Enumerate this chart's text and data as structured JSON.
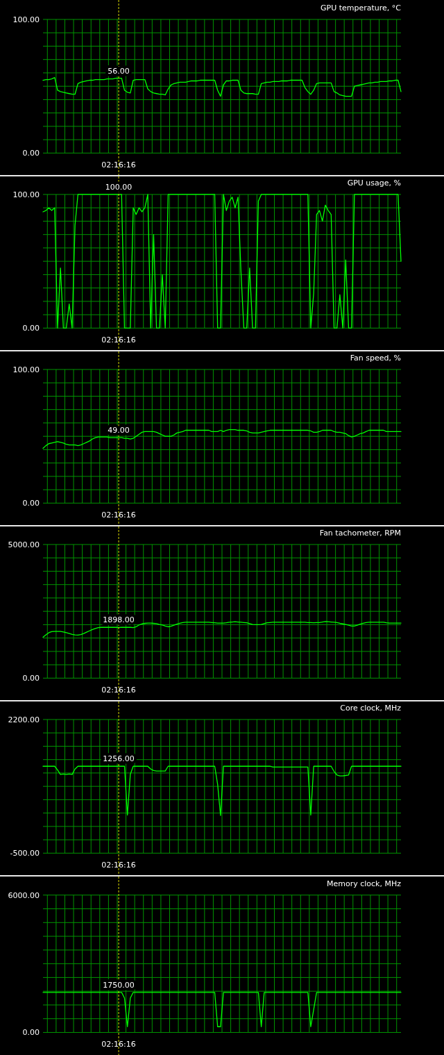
{
  "chart_data": [
    {
      "type": "line",
      "title": "GPU temperature, °C",
      "color": "#00ff00",
      "categories": [
        null,
        null,
        null,
        null,
        null,
        null,
        null,
        null,
        null,
        null,
        null,
        null,
        null,
        null,
        null,
        null,
        null,
        null,
        null,
        null,
        null,
        null,
        null,
        null,
        null,
        null,
        "02:16:16",
        null,
        null,
        null,
        null,
        null,
        null,
        null,
        null,
        null,
        null,
        null,
        null,
        null,
        null,
        null,
        null,
        null,
        null,
        null,
        null,
        null,
        null,
        null,
        null,
        null,
        null,
        null,
        null,
        null,
        null,
        null,
        null,
        null,
        null,
        null,
        null,
        null,
        null,
        null,
        null,
        null,
        null,
        null,
        null,
        null,
        null,
        null,
        null,
        null,
        null,
        null,
        null,
        null,
        null,
        null,
        null,
        null,
        null,
        null,
        null,
        null,
        null,
        null,
        null,
        null,
        null,
        null,
        null,
        null,
        null,
        null,
        null,
        null,
        null,
        null,
        null,
        null,
        null,
        null,
        null,
        null,
        null,
        null,
        null,
        null,
        null,
        null,
        null,
        null,
        null,
        null,
        null,
        null,
        null,
        null,
        null,
        null
      ],
      "values": [
        54.5,
        55,
        55,
        55.5,
        56.5,
        47,
        46,
        45.5,
        45,
        44.5,
        44,
        44,
        52,
        53,
        53.5,
        54,
        54.5,
        54.5,
        55,
        55,
        55,
        55,
        55.5,
        55.5,
        55.5,
        56,
        56,
        56,
        47,
        45.5,
        45,
        54.5,
        55,
        55,
        55,
        55,
        48,
        46,
        45,
        44.5,
        44,
        44,
        43.5,
        48,
        51,
        52,
        52.5,
        53,
        53,
        53,
        53.5,
        54,
        54,
        54,
        54.5,
        54.5,
        54.5,
        54.5,
        54.5,
        54.5,
        47,
        42.5,
        51,
        54,
        54,
        54.5,
        54.5,
        54.5,
        47,
        45,
        44.5,
        44.5,
        44.5,
        44,
        44,
        52,
        52.5,
        53,
        53,
        53.5,
        53.5,
        53.5,
        54,
        54,
        54,
        54.5,
        54.5,
        54.5,
        54.5,
        54.5,
        49,
        46,
        44,
        47,
        52,
        52.5,
        52.5,
        52.5,
        52.5,
        52.5,
        46,
        45,
        43.5,
        43,
        42.5,
        42.5,
        42.5,
        50,
        50.5,
        51,
        51.5,
        52,
        52.5,
        52.5,
        53,
        53,
        53.5,
        53.5,
        53.5,
        54,
        54,
        54.5,
        54.5,
        46
      ],
      "ylim": [
        0,
        100
      ],
      "yticks": [
        {
          "value": 0,
          "label": "0.00"
        },
        {
          "value": 10,
          "label": null
        },
        {
          "value": 20,
          "label": null
        },
        {
          "value": 30,
          "label": null
        },
        {
          "value": 40,
          "label": null
        },
        {
          "value": 50,
          "label": null
        },
        {
          "value": 60,
          "label": null
        },
        {
          "value": 70,
          "label": null
        },
        {
          "value": 80,
          "label": null
        },
        {
          "value": 90,
          "label": null
        },
        {
          "value": 100,
          "label": "100.00"
        }
      ],
      "grid": true,
      "ref_lines": [
        {
          "axis": "x",
          "value": "02:16:16",
          "color": "#dddd00",
          "line_style": "dashed"
        }
      ],
      "annotations": [
        {
          "text": "56.00",
          "x": "02:16:16",
          "y": 56
        }
      ]
    },
    {
      "type": "line",
      "title": "GPU usage, %",
      "color": "#00ff00",
      "categories": [
        null,
        null,
        null,
        null,
        null,
        null,
        null,
        null,
        null,
        null,
        null,
        null,
        null,
        null,
        null,
        null,
        null,
        null,
        null,
        null,
        null,
        null,
        null,
        null,
        null,
        null,
        "02:16:16",
        null,
        null,
        null,
        null,
        null,
        null,
        null,
        null,
        null,
        null,
        null,
        null,
        null,
        null,
        null,
        null,
        null,
        null,
        null,
        null,
        null,
        null,
        null,
        null,
        null,
        null,
        null,
        null,
        null,
        null,
        null,
        null,
        null,
        null,
        null,
        null,
        null,
        null,
        null,
        null,
        null,
        null,
        null,
        null,
        null,
        null,
        null,
        null,
        null,
        null,
        null,
        null,
        null,
        null,
        null,
        null,
        null,
        null,
        null,
        null,
        null,
        null,
        null,
        null,
        null,
        null,
        null,
        null,
        null,
        null,
        null,
        null,
        null,
        null,
        null,
        null,
        null,
        null,
        null,
        null,
        null,
        null,
        null,
        null,
        null,
        null,
        null,
        null,
        null,
        null,
        null,
        null,
        null,
        null,
        null,
        null,
        null
      ],
      "values": [
        87,
        88,
        90,
        88,
        90,
        0,
        45,
        0,
        0,
        18,
        0,
        77,
        100,
        100,
        100,
        100,
        100,
        100,
        100,
        100,
        100,
        100,
        100,
        100,
        100,
        100,
        100,
        100,
        0,
        0,
        0,
        90,
        85,
        90,
        87,
        90,
        100,
        0,
        70,
        0,
        0,
        40,
        0,
        100,
        100,
        100,
        100,
        100,
        100,
        100,
        100,
        100,
        100,
        100,
        100,
        100,
        100,
        100,
        100,
        100,
        0,
        0,
        100,
        88,
        95,
        98,
        90,
        98,
        43,
        0,
        0,
        45,
        0,
        0,
        95,
        100,
        100,
        100,
        100,
        100,
        100,
        100,
        100,
        100,
        100,
        100,
        100,
        100,
        100,
        100,
        100,
        100,
        0,
        26,
        85,
        88,
        80,
        92,
        88,
        85,
        0,
        0,
        25,
        0,
        51,
        0,
        0,
        100,
        100,
        100,
        100,
        100,
        100,
        100,
        100,
        100,
        100,
        100,
        100,
        100,
        100,
        100,
        100,
        50
      ],
      "ylim": [
        0,
        100
      ],
      "yticks": [
        {
          "value": 0,
          "label": "0.00"
        },
        {
          "value": 10,
          "label": null
        },
        {
          "value": 20,
          "label": null
        },
        {
          "value": 30,
          "label": null
        },
        {
          "value": 40,
          "label": null
        },
        {
          "value": 50,
          "label": null
        },
        {
          "value": 60,
          "label": null
        },
        {
          "value": 70,
          "label": null
        },
        {
          "value": 80,
          "label": null
        },
        {
          "value": 90,
          "label": null
        },
        {
          "value": 100,
          "label": "100.00"
        }
      ],
      "grid": true,
      "ref_lines": [
        {
          "axis": "x",
          "value": "02:16:16",
          "color": "#dddd00",
          "line_style": "dashed"
        }
      ],
      "annotations": [
        {
          "text": "100.00",
          "x": "02:16:16",
          "y": 100
        }
      ]
    },
    {
      "type": "line",
      "title": "Fan speed, %",
      "color": "#00ff00",
      "categories": [
        null,
        null,
        null,
        null,
        null,
        null,
        null,
        null,
        null,
        null,
        null,
        null,
        null,
        null,
        null,
        null,
        null,
        null,
        null,
        null,
        null,
        null,
        null,
        null,
        null,
        null,
        "02:16:16",
        null,
        null,
        null,
        null,
        null,
        null,
        null,
        null,
        null,
        null,
        null,
        null,
        null,
        null,
        null,
        null,
        null,
        null,
        null,
        null,
        null,
        null,
        null,
        null,
        null,
        null,
        null,
        null,
        null,
        null,
        null,
        null,
        null,
        null,
        null,
        null,
        null,
        null,
        null,
        null,
        null,
        null,
        null,
        null,
        null,
        null,
        null,
        null,
        null,
        null,
        null,
        null,
        null,
        null,
        null,
        null,
        null,
        null,
        null,
        null,
        null,
        null,
        null,
        null,
        null,
        null,
        null,
        null,
        null,
        null,
        null,
        null,
        null,
        null,
        null,
        null,
        null,
        null,
        null,
        null,
        null,
        null,
        null,
        null,
        null,
        null,
        null,
        null,
        null,
        null,
        null,
        null,
        null,
        null,
        null,
        null,
        null
      ],
      "values": [
        41,
        43,
        44.5,
        45,
        45.5,
        46,
        45.5,
        45,
        44,
        43.5,
        43.5,
        43.5,
        43,
        43.5,
        44.5,
        45.5,
        46.5,
        48,
        49,
        49.5,
        49.5,
        49.5,
        49.5,
        49,
        49,
        49,
        49,
        49,
        48.5,
        48.5,
        48,
        48.5,
        50,
        51.5,
        53,
        53.5,
        53.5,
        53.5,
        53.5,
        53,
        52,
        51,
        50,
        50,
        50,
        51,
        52.5,
        53,
        53.5,
        54.5,
        54.5,
        54.5,
        54.5,
        54.5,
        54.5,
        54.5,
        54.5,
        54.5,
        53.5,
        53.5,
        53.5,
        54.5,
        53.5,
        54.5,
        55,
        55,
        55,
        54.5,
        54.5,
        54.5,
        54,
        53,
        52.5,
        52.5,
        52.5,
        53,
        53.5,
        54,
        54.5,
        54.5,
        54.5,
        54.5,
        54.5,
        54.5,
        54.5,
        54.5,
        54.5,
        54.5,
        54.5,
        54.5,
        54.5,
        54.5,
        54,
        53,
        53,
        53.5,
        54.5,
        54.5,
        54.5,
        54.5,
        53.5,
        53,
        53,
        52.5,
        52,
        50.5,
        49.5,
        50,
        51,
        52,
        52.5,
        53.5,
        54.5,
        54.5,
        54.5,
        54.5,
        54.5,
        54.5,
        53.5,
        53.5,
        53.5,
        53.5,
        53.5,
        53.5
      ],
      "ylim": [
        0,
        100
      ],
      "yticks": [
        {
          "value": 0,
          "label": "0.00"
        },
        {
          "value": 10,
          "label": null
        },
        {
          "value": 20,
          "label": null
        },
        {
          "value": 30,
          "label": null
        },
        {
          "value": 40,
          "label": null
        },
        {
          "value": 50,
          "label": null
        },
        {
          "value": 60,
          "label": null
        },
        {
          "value": 70,
          "label": null
        },
        {
          "value": 80,
          "label": null
        },
        {
          "value": 90,
          "label": null
        },
        {
          "value": 100,
          "label": "100.00"
        }
      ],
      "grid": true,
      "ref_lines": [
        {
          "axis": "x",
          "value": "02:16:16",
          "color": "#dddd00",
          "line_style": "dashed"
        }
      ],
      "annotations": [
        {
          "text": "49.00",
          "x": "02:16:16",
          "y": 49
        }
      ]
    },
    {
      "type": "line",
      "title": "Fan tachometer, RPM",
      "color": "#00ff00",
      "categories": [
        null,
        null,
        null,
        null,
        null,
        null,
        null,
        null,
        null,
        null,
        null,
        null,
        null,
        null,
        null,
        null,
        null,
        null,
        null,
        null,
        null,
        null,
        null,
        null,
        null,
        null,
        "02:16:16",
        null,
        null,
        null,
        null,
        null,
        null,
        null,
        null,
        null,
        null,
        null,
        null,
        null,
        null,
        null,
        null,
        null,
        null,
        null,
        null,
        null,
        null,
        null,
        null,
        null,
        null,
        null,
        null,
        null,
        null,
        null,
        null,
        null,
        null,
        null,
        null,
        null,
        null,
        null,
        null,
        null,
        null,
        null,
        null,
        null,
        null,
        null,
        null,
        null,
        null,
        null,
        null,
        null,
        null,
        null,
        null,
        null,
        null,
        null,
        null,
        null,
        null,
        null,
        null,
        null,
        null,
        null,
        null,
        null,
        null,
        null,
        null,
        null,
        null,
        null,
        null,
        null,
        null,
        null,
        null,
        null,
        null,
        null,
        null,
        null,
        null,
        null,
        null,
        null,
        null,
        null,
        null,
        null,
        null,
        null,
        null,
        null
      ],
      "values": [
        1530,
        1620,
        1700,
        1740,
        1750,
        1750,
        1750,
        1730,
        1700,
        1670,
        1640,
        1620,
        1610,
        1630,
        1670,
        1720,
        1770,
        1820,
        1860,
        1890,
        1900,
        1900,
        1900,
        1900,
        1900,
        1900,
        1898,
        1900,
        1900,
        1900,
        1900,
        1890,
        1920,
        1990,
        2030,
        2050,
        2060,
        2060,
        2050,
        2040,
        2010,
        1990,
        1950,
        1920,
        1940,
        1980,
        2020,
        2050,
        2080,
        2090,
        2090,
        2090,
        2090,
        2090,
        2090,
        2090,
        2090,
        2090,
        2080,
        2070,
        2060,
        2060,
        2060,
        2070,
        2090,
        2100,
        2110,
        2100,
        2090,
        2080,
        2070,
        2040,
        2010,
        2000,
        2000,
        2010,
        2040,
        2070,
        2080,
        2090,
        2090,
        2090,
        2090,
        2090,
        2090,
        2090,
        2090,
        2090,
        2090,
        2090,
        2090,
        2080,
        2080,
        2070,
        2080,
        2080,
        2100,
        2120,
        2110,
        2100,
        2090,
        2080,
        2050,
        2030,
        2010,
        1980,
        1950,
        1950,
        1980,
        2020,
        2050,
        2080,
        2090,
        2090,
        2090,
        2090,
        2090,
        2090,
        2070,
        2060,
        2060,
        2060,
        2060,
        2060
      ],
      "ylim": [
        0,
        5000
      ],
      "yticks": [
        {
          "value": 0,
          "label": "0.00"
        },
        {
          "value": 500,
          "label": null
        },
        {
          "value": 1000,
          "label": null
        },
        {
          "value": 1500,
          "label": null
        },
        {
          "value": 2000,
          "label": null
        },
        {
          "value": 2500,
          "label": null
        },
        {
          "value": 3000,
          "label": null
        },
        {
          "value": 3500,
          "label": null
        },
        {
          "value": 4000,
          "label": null
        },
        {
          "value": 4500,
          "label": null
        },
        {
          "value": 5000,
          "label": "5000.00"
        }
      ],
      "grid": true,
      "ref_lines": [
        {
          "axis": "x",
          "value": "02:16:16",
          "color": "#dddd00",
          "line_style": "dashed"
        }
      ],
      "annotations": [
        {
          "text": "1898.00",
          "x": "02:16:16",
          "y": 1898
        }
      ]
    },
    {
      "type": "line",
      "title": "Core clock, MHz",
      "color": "#00ff00",
      "categories": [
        null,
        null,
        null,
        null,
        null,
        null,
        null,
        null,
        null,
        null,
        null,
        null,
        null,
        null,
        null,
        null,
        null,
        null,
        null,
        null,
        null,
        null,
        null,
        null,
        null,
        null,
        "02:16:16",
        null,
        null,
        null,
        null,
        null,
        null,
        null,
        null,
        null,
        null,
        null,
        null,
        null,
        null,
        null,
        null,
        null,
        null,
        null,
        null,
        null,
        null,
        null,
        null,
        null,
        null,
        null,
        null,
        null,
        null,
        null,
        null,
        null,
        null,
        null,
        null,
        null,
        null,
        null,
        null,
        null,
        null,
        null,
        null,
        null,
        null,
        null,
        null,
        null,
        null,
        null,
        null,
        null,
        null,
        null,
        null,
        null,
        null,
        null,
        null,
        null,
        null,
        null,
        null,
        null,
        null,
        null,
        null,
        null,
        null,
        null,
        null,
        null,
        null,
        null,
        null,
        null,
        null,
        null,
        null,
        null,
        null,
        null,
        null,
        null,
        null,
        null,
        null,
        null,
        null,
        null,
        null,
        null,
        null,
        null,
        null,
        null
      ],
      "values": [
        1256,
        1256,
        1256,
        1256,
        1256,
        1180,
        1090,
        1100,
        1090,
        1100,
        1090,
        1200,
        1256,
        1256,
        1256,
        1256,
        1256,
        1256,
        1256,
        1256,
        1256,
        1256,
        1256,
        1256,
        1256,
        1256,
        1256,
        1256,
        1256,
        270,
        1090,
        1256,
        1256,
        1256,
        1256,
        1256,
        1256,
        1200,
        1170,
        1160,
        1160,
        1160,
        1160,
        1256,
        1256,
        1256,
        1256,
        1256,
        1256,
        1256,
        1256,
        1256,
        1256,
        1256,
        1256,
        1256,
        1256,
        1256,
        1256,
        1256,
        890,
        260,
        1256,
        1256,
        1256,
        1256,
        1256,
        1256,
        1256,
        1256,
        1256,
        1256,
        1256,
        1256,
        1256,
        1256,
        1256,
        1256,
        1256,
        1240,
        1240,
        1240,
        1240,
        1240,
        1240,
        1240,
        1240,
        1240,
        1240,
        1240,
        1240,
        1240,
        270,
        1256,
        1256,
        1256,
        1256,
        1256,
        1256,
        1256,
        1150,
        1080,
        1060,
        1060,
        1070,
        1080,
        1256,
        1256,
        1256,
        1256,
        1256,
        1256,
        1256,
        1256,
        1256,
        1256,
        1256,
        1256,
        1256,
        1256,
        1256,
        1256,
        1256,
        1256
      ],
      "ylim": [
        -500,
        2200
      ],
      "yticks": [
        {
          "value": -500,
          "label": "-500.00"
        },
        {
          "value": -230,
          "label": null
        },
        {
          "value": 40,
          "label": null
        },
        {
          "value": 310,
          "label": null
        },
        {
          "value": 580,
          "label": null
        },
        {
          "value": 850,
          "label": null
        },
        {
          "value": 1120,
          "label": null
        },
        {
          "value": 1390,
          "label": null
        },
        {
          "value": 1660,
          "label": null
        },
        {
          "value": 1930,
          "label": null
        },
        {
          "value": 2200,
          "label": "2200.00"
        }
      ],
      "grid": true,
      "ref_lines": [
        {
          "axis": "x",
          "value": "02:16:16",
          "color": "#dddd00",
          "line_style": "dashed"
        }
      ],
      "annotations": [
        {
          "text": "1256.00",
          "x": "02:16:16",
          "y": 1256
        }
      ]
    },
    {
      "type": "line",
      "title": "Memory clock, MHz",
      "color": "#00ff00",
      "categories": [
        null,
        null,
        null,
        null,
        null,
        null,
        null,
        null,
        null,
        null,
        null,
        null,
        null,
        null,
        null,
        null,
        null,
        null,
        null,
        null,
        null,
        null,
        null,
        null,
        null,
        null,
        "02:16:16",
        null,
        null,
        null,
        null,
        null,
        null,
        null,
        null,
        null,
        null,
        null,
        null,
        null,
        null,
        null,
        null,
        null,
        null,
        null,
        null,
        null,
        null,
        null,
        null,
        null,
        null,
        null,
        null,
        null,
        null,
        null,
        null,
        null,
        null,
        null,
        null,
        null,
        null,
        null,
        null,
        null,
        null,
        null,
        null,
        null,
        null,
        null,
        null,
        null,
        null,
        null,
        null,
        null,
        null,
        null,
        null,
        null,
        null,
        null,
        null,
        null,
        null,
        null,
        null,
        null,
        null,
        null,
        null,
        null,
        null,
        null,
        null,
        null,
        null,
        null,
        null,
        null,
        null,
        null,
        null,
        null,
        null,
        null,
        null,
        null,
        null,
        null,
        null,
        null,
        null,
        null,
        null,
        null,
        null,
        null,
        null,
        null
      ],
      "values": [
        1750,
        1750,
        1750,
        1750,
        1750,
        1750,
        1750,
        1750,
        1750,
        1750,
        1750,
        1750,
        1750,
        1750,
        1750,
        1750,
        1750,
        1750,
        1750,
        1750,
        1750,
        1750,
        1750,
        1750,
        1750,
        1750,
        1750,
        1750,
        1500,
        250,
        1500,
        1750,
        1750,
        1750,
        1750,
        1750,
        1750,
        1750,
        1750,
        1750,
        1750,
        1750,
        1750,
        1750,
        1750,
        1750,
        1750,
        1750,
        1750,
        1750,
        1750,
        1750,
        1750,
        1750,
        1750,
        1750,
        1750,
        1750,
        1750,
        1750,
        250,
        250,
        1750,
        1750,
        1750,
        1750,
        1750,
        1750,
        1750,
        1750,
        1750,
        1750,
        1750,
        1750,
        1750,
        250,
        1750,
        1750,
        1750,
        1750,
        1750,
        1750,
        1750,
        1750,
        1750,
        1750,
        1750,
        1750,
        1750,
        1750,
        1750,
        1750,
        250,
        1000,
        1750,
        1750,
        1750,
        1750,
        1750,
        1750,
        1750,
        1750,
        1750,
        1750,
        1750,
        1750,
        1750,
        1750,
        1750,
        1750,
        1750,
        1750,
        1750,
        1750,
        1750,
        1750,
        1750,
        1750,
        1750,
        1750,
        1750,
        1750,
        1750,
        1750
      ],
      "ylim": [
        0,
        6000
      ],
      "yticks": [
        {
          "value": 0,
          "label": "0.00"
        },
        {
          "value": 600,
          "label": null
        },
        {
          "value": 1200,
          "label": null
        },
        {
          "value": 1800,
          "label": null
        },
        {
          "value": 2400,
          "label": null
        },
        {
          "value": 3000,
          "label": null
        },
        {
          "value": 3600,
          "label": null
        },
        {
          "value": 4200,
          "label": null
        },
        {
          "value": 4800,
          "label": null
        },
        {
          "value": 5400,
          "label": null
        },
        {
          "value": 6000,
          "label": "6000.00"
        }
      ],
      "grid": true,
      "ref_lines": [
        {
          "axis": "x",
          "value": "02:16:16",
          "color": "#dddd00",
          "line_style": "dashed"
        }
      ],
      "annotations": [
        {
          "text": "1750.00",
          "x": "02:16:16",
          "y": 1750
        }
      ]
    }
  ]
}
